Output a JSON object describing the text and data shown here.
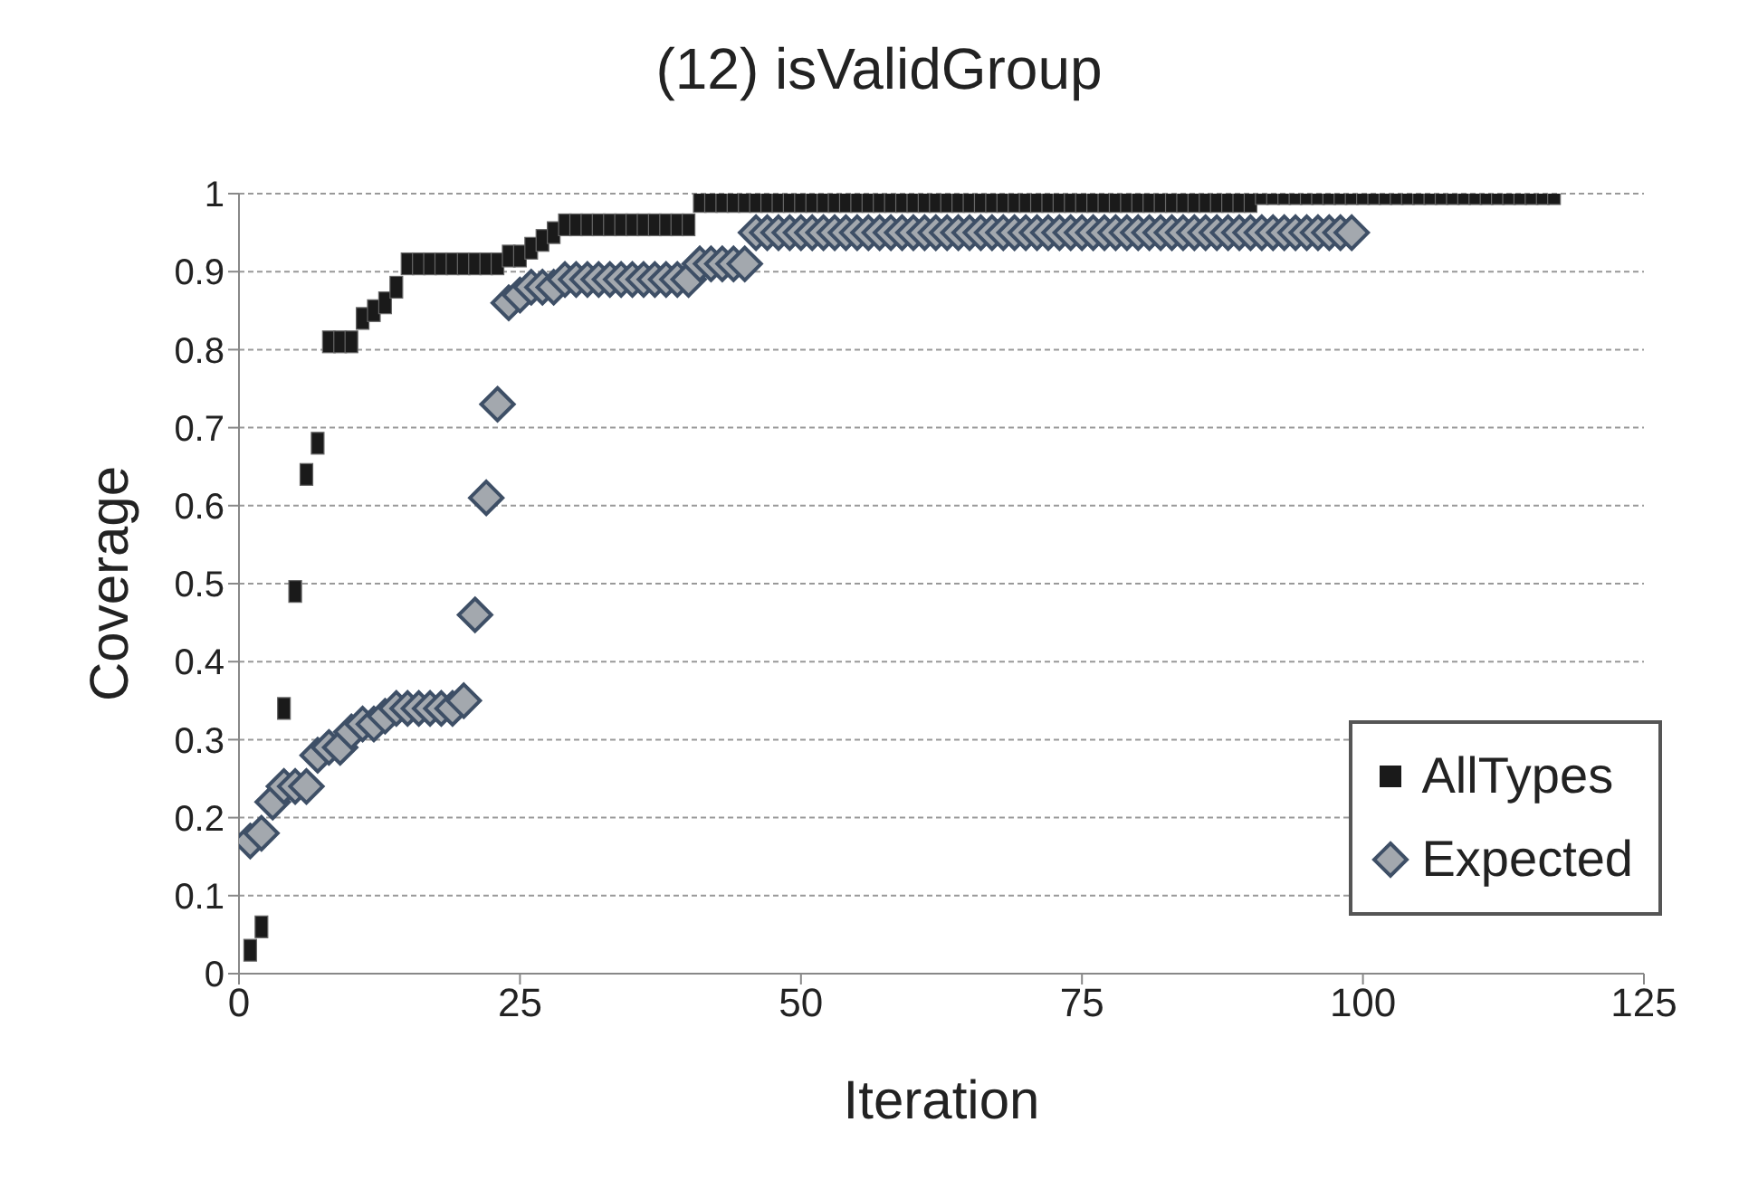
{
  "chart_data": {
    "type": "scatter",
    "title": "(12) isValidGroup",
    "xlabel": "Iteration",
    "ylabel": "Coverage",
    "xlim": [
      0,
      125
    ],
    "xticks": [
      0,
      25,
      50,
      75,
      100,
      125
    ],
    "ylim": [
      0,
      1
    ],
    "yticks": [
      0,
      {
        "value": 0.1,
        "label": "0.1"
      },
      {
        "value": 0.2,
        "label": "0.2"
      },
      {
        "value": 0.3,
        "label": "0.3"
      },
      {
        "value": 0.4,
        "label": "0.4"
      },
      {
        "value": 0.5,
        "label": "0.5"
      },
      {
        "value": 0.6,
        "label": "0.6"
      },
      {
        "value": 0.7,
        "label": "0.7"
      },
      {
        "value": 0.8,
        "label": "0.8"
      },
      {
        "value": 0.9,
        "label": "0.9"
      },
      1
    ],
    "grid": "y",
    "legend": "bottom right",
    "series": [
      {
        "name": "AllTypes",
        "color": "#1a1a1a",
        "marker": "square",
        "x": [
          1,
          2,
          4,
          5,
          6,
          7,
          8,
          9,
          10,
          11,
          12,
          13,
          14,
          15,
          16,
          17,
          18,
          19,
          20,
          21,
          22,
          23,
          24,
          25,
          26,
          27,
          28,
          29,
          30,
          31,
          32,
          33,
          34,
          35,
          36,
          37,
          38,
          39,
          40,
          41,
          42,
          43,
          44,
          45,
          46,
          47,
          48,
          49,
          50,
          51,
          52,
          53,
          54,
          55,
          56,
          57,
          58,
          59,
          60,
          61,
          62,
          63,
          64,
          65,
          66,
          67,
          68,
          69,
          70,
          71,
          72,
          73,
          74,
          75,
          76,
          77,
          78,
          79,
          80,
          81,
          82,
          83,
          84,
          85,
          86,
          87,
          88,
          89,
          90,
          91,
          92,
          93,
          94,
          95,
          96,
          97,
          98,
          99,
          100,
          101,
          102,
          103,
          104,
          105,
          106,
          107,
          108,
          109,
          110,
          111,
          112,
          113,
          114,
          115,
          116,
          117
        ],
        "values": [
          0.03,
          0.06,
          0.34,
          0.49,
          0.64,
          0.68,
          0.81,
          0.81,
          0.81,
          0.84,
          0.85,
          0.86,
          0.88,
          0.91,
          0.91,
          0.91,
          0.91,
          0.91,
          0.91,
          0.91,
          0.91,
          0.91,
          0.92,
          0.92,
          0.93,
          0.94,
          0.95,
          0.96,
          0.96,
          0.96,
          0.96,
          0.96,
          0.96,
          0.96,
          0.96,
          0.96,
          0.96,
          0.96,
          0.96,
          0.99,
          0.99,
          0.99,
          0.99,
          0.99,
          0.99,
          0.99,
          0.99,
          0.99,
          0.99,
          0.99,
          0.99,
          0.99,
          0.99,
          0.99,
          0.99,
          0.99,
          0.99,
          0.99,
          0.99,
          0.99,
          0.99,
          0.99,
          0.99,
          0.99,
          0.99,
          0.99,
          0.99,
          0.99,
          0.99,
          0.99,
          0.99,
          0.99,
          0.99,
          0.99,
          0.99,
          0.99,
          0.99,
          0.99,
          0.99,
          0.99,
          0.99,
          0.99,
          0.99,
          0.99,
          0.99,
          0.99,
          0.99,
          0.99,
          0.99,
          1,
          1,
          1,
          1,
          1,
          1,
          1,
          1,
          1,
          1,
          1,
          1,
          1,
          1,
          1,
          1,
          1,
          1,
          1,
          1,
          1,
          1,
          1,
          1,
          1,
          1,
          1
        ]
      },
      {
        "name": "Expected",
        "color": "#a3a8ae",
        "marker": "diamond",
        "x": [
          1,
          2,
          3,
          4,
          5,
          6,
          7,
          8,
          9,
          10,
          11,
          12,
          13,
          14,
          15,
          16,
          17,
          18,
          19,
          20,
          21,
          22,
          23,
          24,
          25,
          26,
          27,
          28,
          29,
          30,
          31,
          32,
          33,
          34,
          35,
          36,
          37,
          38,
          39,
          40,
          41,
          42,
          43,
          44,
          45,
          46,
          47,
          48,
          49,
          50,
          51,
          52,
          53,
          54,
          55,
          56,
          57,
          58,
          59,
          60,
          61,
          62,
          63,
          64,
          65,
          66,
          67,
          68,
          69,
          70,
          71,
          72,
          73,
          74,
          75,
          76,
          77,
          78,
          79,
          80,
          81,
          82,
          83,
          84,
          85,
          86,
          87,
          88,
          89,
          90,
          91,
          92,
          93,
          94,
          95,
          96,
          97,
          98,
          99
        ],
        "values": [
          0.17,
          0.18,
          0.22,
          0.24,
          0.24,
          0.24,
          0.28,
          0.29,
          0.29,
          0.31,
          0.32,
          0.32,
          0.33,
          0.34,
          0.34,
          0.34,
          0.34,
          0.34,
          0.34,
          0.35,
          0.46,
          0.61,
          0.73,
          0.86,
          0.87,
          0.88,
          0.88,
          0.88,
          0.89,
          0.89,
          0.89,
          0.89,
          0.89,
          0.89,
          0.89,
          0.89,
          0.89,
          0.89,
          0.89,
          0.89,
          0.91,
          0.91,
          0.91,
          0.91,
          0.91,
          0.95,
          0.95,
          0.95,
          0.95,
          0.95,
          0.95,
          0.95,
          0.95,
          0.95,
          0.95,
          0.95,
          0.95,
          0.95,
          0.95,
          0.95,
          0.95,
          0.95,
          0.95,
          0.95,
          0.95,
          0.95,
          0.95,
          0.95,
          0.95,
          0.95,
          0.95,
          0.95,
          0.95,
          0.95,
          0.95,
          0.95,
          0.95,
          0.95,
          0.95,
          0.95,
          0.95,
          0.95,
          0.95,
          0.95,
          0.95,
          0.95,
          0.95,
          0.95,
          0.95,
          0.95,
          0.95,
          0.95,
          0.95,
          0.95,
          0.95,
          0.95,
          0.95,
          0.95,
          0.95
        ]
      }
    ]
  }
}
